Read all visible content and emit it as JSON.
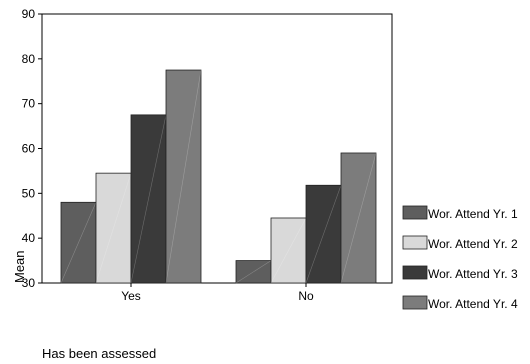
{
  "chart_data": {
    "type": "bar",
    "categories": [
      "Yes",
      "No"
    ],
    "series": [
      {
        "name": "Wor. Attend Yr. 1",
        "values": [
          48,
          35
        ],
        "color": "#5e5e5e"
      },
      {
        "name": "Wor. Attend Yr. 2",
        "values": [
          54.5,
          44.5
        ],
        "color": "#d9d9d9"
      },
      {
        "name": "Wor. Attend Yr. 3",
        "values": [
          67.5,
          51.8
        ],
        "color": "#3a3a3a"
      },
      {
        "name": "Wor. Attend Yr. 4",
        "values": [
          77.5,
          59
        ],
        "color": "#7c7c7c"
      }
    ],
    "ylabel": "Mean",
    "xlabel": "Has been assessed",
    "ylim": [
      30,
      90
    ],
    "yticks": [
      30,
      40,
      50,
      60,
      70,
      80,
      90
    ],
    "grid": false,
    "legend_position": "right"
  }
}
